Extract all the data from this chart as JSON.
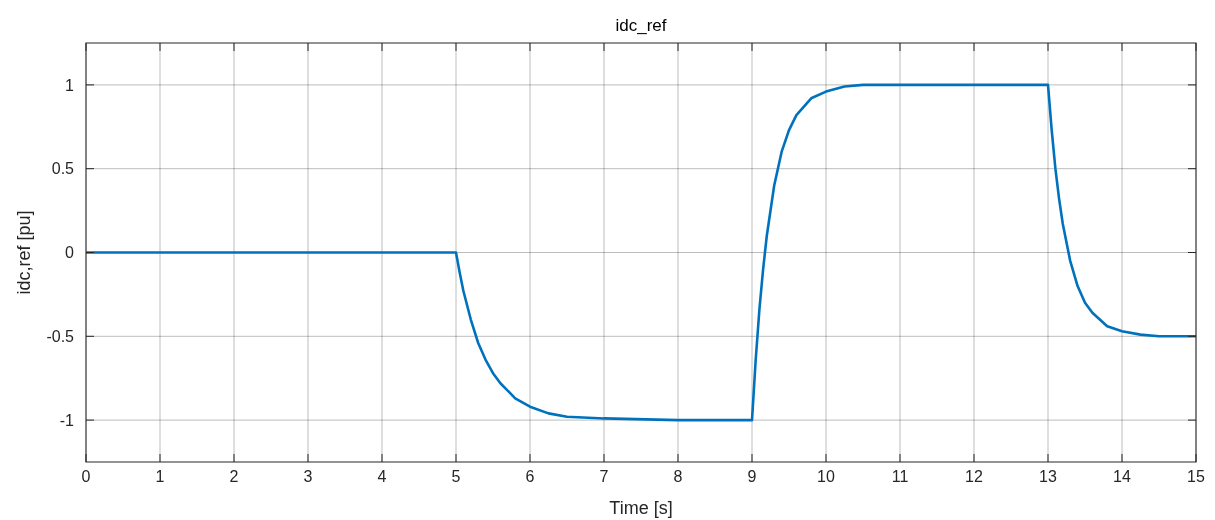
{
  "chart_data": {
    "type": "line",
    "title": "idc_ref",
    "xlabel": "Time [s]",
    "ylabel": "idc,ref [pu]",
    "xlim": [
      0,
      15
    ],
    "ylim": [
      -1.25,
      1.25
    ],
    "xticks": [
      0,
      1,
      2,
      3,
      4,
      5,
      6,
      7,
      8,
      9,
      10,
      11,
      12,
      13,
      14,
      15
    ],
    "yticks": [
      -1,
      -0.5,
      0,
      0.5,
      1
    ],
    "grid": true,
    "series": [
      {
        "color": "#0072bd",
        "x": [
          0,
          5,
          5.05,
          5.1,
          5.2,
          5.3,
          5.4,
          5.5,
          5.6,
          5.8,
          6,
          6.25,
          6.5,
          7,
          8,
          9,
          9.05,
          9.1,
          9.15,
          9.2,
          9.3,
          9.4,
          9.5,
          9.6,
          9.8,
          10,
          10.25,
          10.5,
          11,
          13,
          13.05,
          13.1,
          13.15,
          13.2,
          13.3,
          13.4,
          13.5,
          13.6,
          13.8,
          14,
          14.25,
          14.5,
          15
        ],
        "values": [
          0,
          0,
          -0.12,
          -0.23,
          -0.4,
          -0.54,
          -0.64,
          -0.72,
          -0.78,
          -0.87,
          -0.92,
          -0.96,
          -0.98,
          -0.99,
          -1,
          -1,
          -0.64,
          -0.34,
          -0.1,
          0.1,
          0.4,
          0.6,
          0.73,
          0.82,
          0.92,
          0.96,
          0.99,
          1,
          1,
          1,
          0.73,
          0.5,
          0.32,
          0.17,
          -0.05,
          -0.2,
          -0.3,
          -0.36,
          -0.44,
          -0.47,
          -0.49,
          -0.5,
          -0.5
        ]
      }
    ]
  }
}
